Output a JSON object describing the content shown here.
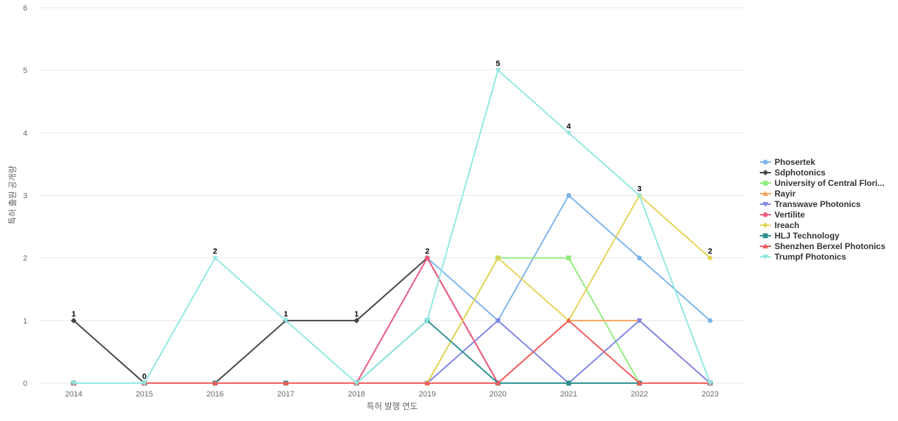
{
  "chart_data": {
    "type": "line",
    "xlabel": "특허 발행 연도",
    "ylabel": "특허 출원 공개량",
    "ylim": [
      0,
      6
    ],
    "yticks": [
      "0",
      "1",
      "2",
      "3",
      "4",
      "5",
      "6"
    ],
    "categories": [
      "2014",
      "2015",
      "2016",
      "2017",
      "2018",
      "2019",
      "2020",
      "2021",
      "2022",
      "2023"
    ],
    "grid": true,
    "legend_position": "right",
    "series": [
      {
        "name": "Phosertek",
        "color": "#7cb5ec",
        "marker": "circle",
        "values": [
          0,
          0,
          0,
          0,
          0,
          2,
          1,
          3,
          2,
          1
        ]
      },
      {
        "name": "Sdphotonics",
        "color": "#434348",
        "marker": "diamond",
        "values": [
          1,
          0,
          0,
          1,
          1,
          2,
          0,
          0,
          0,
          0
        ]
      },
      {
        "name": "University of Central Flori...",
        "color": "#90ed7d",
        "marker": "square",
        "values": [
          0,
          0,
          0,
          0,
          0,
          0,
          2,
          2,
          0,
          0
        ]
      },
      {
        "name": "Rayir",
        "color": "#f7a35c",
        "marker": "triangle",
        "values": [
          0,
          0,
          0,
          0,
          0,
          0,
          0,
          1,
          1,
          0
        ]
      },
      {
        "name": "Transwave Photonics",
        "color": "#8085e9",
        "marker": "triangle-down",
        "values": [
          0,
          0,
          0,
          0,
          0,
          0,
          1,
          0,
          1,
          0
        ]
      },
      {
        "name": "Vertilite",
        "color": "#f15c80",
        "marker": "circle",
        "values": [
          0,
          0,
          0,
          0,
          0,
          2,
          0,
          0,
          0,
          0
        ]
      },
      {
        "name": "Ireach",
        "color": "#e4d354",
        "marker": "diamond",
        "values": [
          0,
          0,
          0,
          0,
          0,
          0,
          2,
          1,
          3,
          2
        ]
      },
      {
        "name": "HLJ Technology",
        "color": "#2b908f",
        "marker": "square",
        "values": [
          0,
          0,
          0,
          0,
          0,
          1,
          0,
          0,
          0,
          0
        ]
      },
      {
        "name": "Shenzhen Berxel Photonics",
        "color": "#f45b5b",
        "marker": "triangle",
        "values": [
          0,
          0,
          0,
          0,
          0,
          0,
          0,
          1,
          0,
          0
        ]
      },
      {
        "name": "Trumpf Photonics",
        "color": "#91e8e1",
        "marker": "triangle-down",
        "values": [
          0,
          0,
          2,
          1,
          0,
          1,
          5,
          4,
          3,
          0
        ]
      }
    ],
    "data_labels": [
      "1",
      "0",
      "2",
      "1",
      "1",
      "2",
      "5",
      "4",
      "3",
      "2"
    ]
  }
}
